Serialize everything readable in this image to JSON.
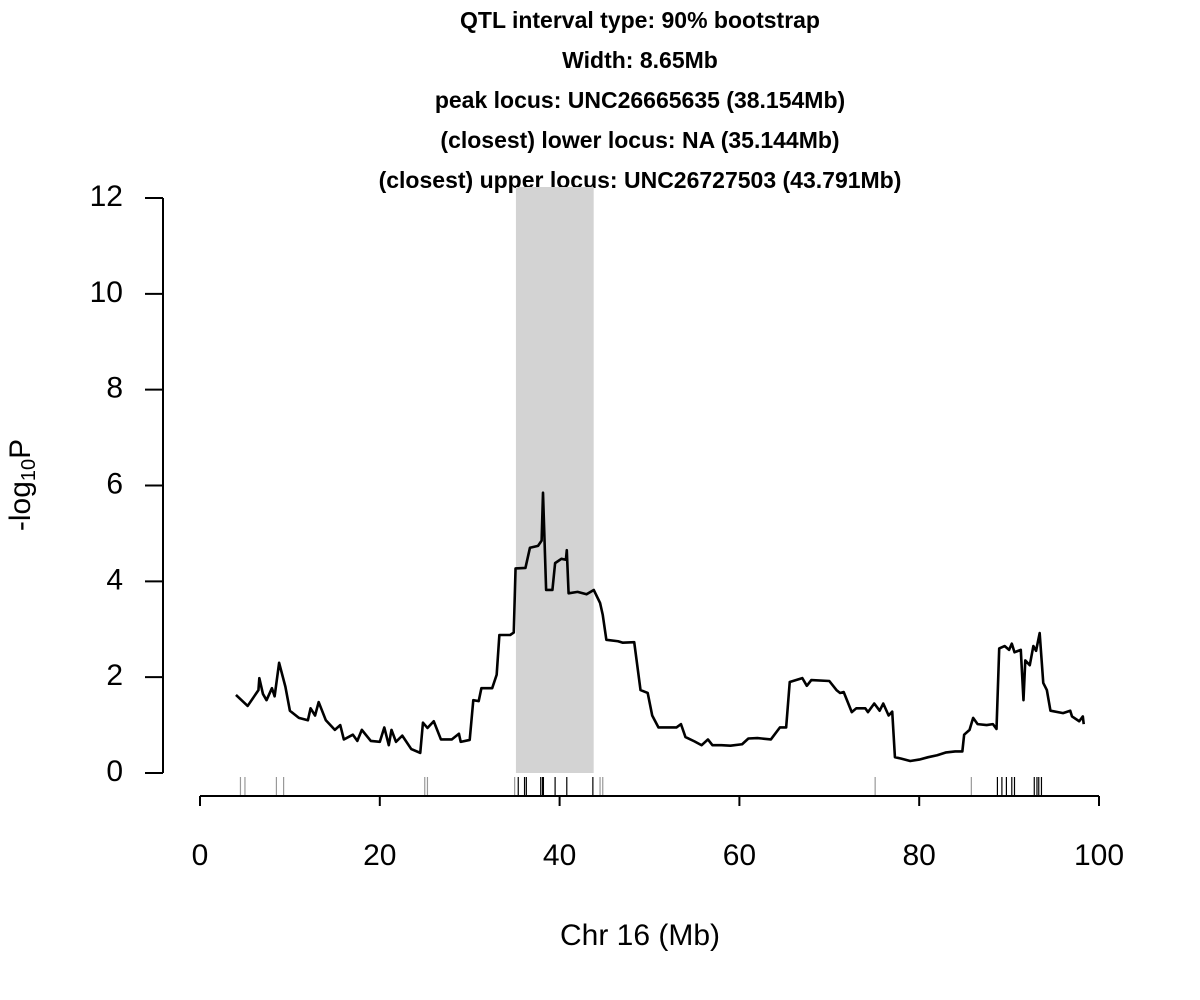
{
  "chart_data": {
    "type": "line",
    "title": [
      "QTL interval type: 90% bootstrap",
      "Width: 8.65Mb",
      "peak locus: UNC26665635 (38.154Mb)",
      "(closest) lower locus: NA (35.144Mb)",
      "(closest) upper locus: UNC26727503 (43.791Mb)"
    ],
    "xlabel": "Chr 16 (Mb)",
    "ylabel": {
      "text": "-log",
      "subscript": "10",
      "after": "P"
    },
    "xlim": [
      0,
      100
    ],
    "xticks": [
      0,
      20,
      40,
      60,
      80,
      100
    ],
    "ylim": [
      0,
      12
    ],
    "yticks": [
      0,
      2,
      4,
      6,
      8,
      10,
      12
    ],
    "color": "#000000",
    "interval": [
      35.144,
      43.791
    ],
    "interval_color": "#d3d3d3",
    "x": [
      4,
      5.3,
      6.5,
      6.6,
      7,
      7.4,
      8.0,
      8.3,
      8.8,
      9.5,
      10,
      11,
      12,
      12.3,
      12.8,
      13.2,
      14,
      15,
      15.6,
      16,
      17,
      17.5,
      18,
      19,
      20,
      20.5,
      21,
      21.3,
      21.8,
      22.5,
      23.5,
      24.5,
      24.8,
      25.3,
      26,
      26.8,
      28,
      28.8,
      29,
      30,
      30.4,
      31,
      31.3,
      32.5,
      33,
      33.3,
      34.5,
      34.9,
      35.1,
      36.2,
      36.7,
      37.6,
      38.0,
      38.154,
      38.5,
      39.2,
      39.5,
      40.2,
      40.7,
      40.8,
      41,
      42,
      43,
      43.8,
      44.5,
      44.8,
      45.2,
      46.5,
      47,
      48.3,
      49,
      49.8,
      50.3,
      51,
      53,
      53.5,
      54,
      55,
      55.8,
      56.5,
      57,
      58,
      59,
      60.3,
      61,
      62,
      63.5,
      64.5,
      65.2,
      65.6,
      67,
      67.5,
      68,
      70,
      70.8,
      71.2,
      71.6,
      72.5,
      73,
      74,
      74.3,
      75,
      75.6,
      76,
      76.6,
      77,
      77.3,
      78,
      79,
      80,
      81,
      82,
      83,
      84,
      84.8,
      85,
      85.6,
      86,
      86.5,
      87.5,
      88.2,
      88.6,
      88.9,
      89.5,
      90,
      90.3,
      90.6,
      91.3,
      91.6,
      91.8,
      92.3,
      92.7,
      93,
      93.4,
      93.8,
      94.2,
      94.6,
      96,
      96.8,
      97,
      97.8,
      98.2,
      98.3
    ],
    "values": [
      1.63,
      1.4,
      1.73,
      1.98,
      1.65,
      1.52,
      1.77,
      1.6,
      2.3,
      1.8,
      1.3,
      1.15,
      1.1,
      1.35,
      1.2,
      1.48,
      1.1,
      0.9,
      1.0,
      0.7,
      0.8,
      0.67,
      0.9,
      0.67,
      0.65,
      0.95,
      0.58,
      0.9,
      0.65,
      0.78,
      0.5,
      0.42,
      1.05,
      0.94,
      1.08,
      0.7,
      0.7,
      0.82,
      0.65,
      0.69,
      1.52,
      1.5,
      1.77,
      1.77,
      2.05,
      2.88,
      2.88,
      2.93,
      4.27,
      4.28,
      4.7,
      4.74,
      4.85,
      5.85,
      3.82,
      3.82,
      4.38,
      4.47,
      4.45,
      4.65,
      3.75,
      3.78,
      3.73,
      3.82,
      3.55,
      3.3,
      2.78,
      2.75,
      2.72,
      2.73,
      1.73,
      1.67,
      1.2,
      0.95,
      0.95,
      1.02,
      0.75,
      0.66,
      0.58,
      0.7,
      0.58,
      0.58,
      0.57,
      0.6,
      0.72,
      0.73,
      0.7,
      0.95,
      0.95,
      1.9,
      1.98,
      1.82,
      1.94,
      1.92,
      1.73,
      1.67,
      1.69,
      1.27,
      1.35,
      1.35,
      1.27,
      1.45,
      1.3,
      1.45,
      1.2,
      1.28,
      0.33,
      0.3,
      0.25,
      0.28,
      0.33,
      0.37,
      0.43,
      0.45,
      0.45,
      0.8,
      0.9,
      1.15,
      1.02,
      1.0,
      1.02,
      0.92,
      2.6,
      2.65,
      2.57,
      2.7,
      2.52,
      2.57,
      1.52,
      2.35,
      2.25,
      2.65,
      2.55,
      2.92,
      1.88,
      1.73,
      1.3,
      1.25,
      1.3,
      1.18,
      1.08,
      1.18,
      1.02
    ],
    "rug": [
      {
        "x": 4.5,
        "color": "#999999"
      },
      {
        "x": 5.0,
        "color": "#999999"
      },
      {
        "x": 8.5,
        "color": "#999999"
      },
      {
        "x": 9.3,
        "color": "#999999"
      },
      {
        "x": 25.0,
        "color": "#999999"
      },
      {
        "x": 25.3,
        "color": "#999999"
      },
      {
        "x": 35.0,
        "color": "#999999"
      },
      {
        "x": 35.4,
        "color": "#000000"
      },
      {
        "x": 36.1,
        "color": "#000000"
      },
      {
        "x": 36.3,
        "color": "#000000"
      },
      {
        "x": 37.9,
        "color": "#000000"
      },
      {
        "x": 38.1,
        "color": "#000000"
      },
      {
        "x": 38.2,
        "color": "#000000"
      },
      {
        "x": 39.5,
        "color": "#000000"
      },
      {
        "x": 40.8,
        "color": "#000000"
      },
      {
        "x": 43.7,
        "color": "#000000"
      },
      {
        "x": 44.5,
        "color": "#999999"
      },
      {
        "x": 44.8,
        "color": "#999999"
      },
      {
        "x": 75.1,
        "color": "#999999"
      },
      {
        "x": 85.8,
        "color": "#999999"
      },
      {
        "x": 88.7,
        "color": "#000000"
      },
      {
        "x": 89.2,
        "color": "#000000"
      },
      {
        "x": 89.7,
        "color": "#000000"
      },
      {
        "x": 90.3,
        "color": "#000000"
      },
      {
        "x": 90.6,
        "color": "#000000"
      },
      {
        "x": 92.8,
        "color": "#000000"
      },
      {
        "x": 93.1,
        "color": "#000000"
      },
      {
        "x": 93.3,
        "color": "#000000"
      },
      {
        "x": 93.6,
        "color": "#000000"
      }
    ]
  }
}
